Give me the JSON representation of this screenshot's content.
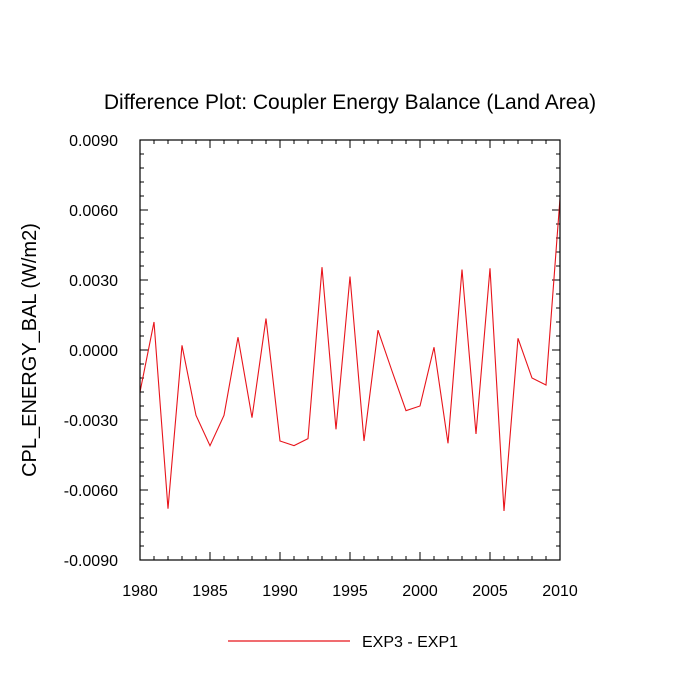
{
  "chart_data": {
    "type": "line",
    "title": "Difference Plot: Coupler Energy Balance (Land Area)",
    "xlabel": "",
    "ylabel": "CPL_ENERGY_BAL  (W/m2)",
    "xlim": [
      1980,
      2010
    ],
    "ylim": [
      -0.009,
      0.009
    ],
    "x_major_ticks": [
      1980,
      1985,
      1990,
      1995,
      2000,
      2005,
      2010
    ],
    "x_tick_labels": [
      "1980",
      "1985",
      "1990",
      "1995",
      "2000",
      "2005",
      "2010"
    ],
    "x_minor_step": 1,
    "y_major_ticks": [
      -0.009,
      -0.006,
      -0.003,
      0.0,
      0.003,
      0.006,
      0.009
    ],
    "y_tick_labels": [
      "-0.0090",
      "-0.0060",
      "-0.0030",
      "0.0000",
      "0.0030",
      "0.0060",
      "0.0090"
    ],
    "y_minor_step": 0.0006,
    "grid": false,
    "legend_position": "bottom-center",
    "series": [
      {
        "name": "EXP3 - EXP1",
        "color": "#e8141b",
        "x": [
          1980,
          1981,
          1982,
          1983,
          1984,
          1985,
          1986,
          1987,
          1988,
          1989,
          1990,
          1991,
          1992,
          1993,
          1994,
          1995,
          1996,
          1997,
          1998,
          1999,
          2000,
          2001,
          2002,
          2003,
          2004,
          2005,
          2006,
          2007,
          2008,
          2009,
          2010
        ],
        "values": [
          -0.0018,
          0.0012,
          -0.0068,
          0.0002,
          -0.0028,
          -0.0041,
          -0.0028,
          0.00055,
          -0.0029,
          0.00135,
          -0.0039,
          -0.0041,
          -0.0038,
          0.00355,
          -0.0034,
          0.00315,
          -0.0039,
          0.00085,
          -0.0009,
          -0.0026,
          -0.0024,
          0.00012,
          -0.004,
          0.00345,
          -0.0036,
          0.0035,
          -0.0069,
          0.0005,
          -0.0012,
          -0.0015,
          0.0065
        ]
      }
    ]
  }
}
